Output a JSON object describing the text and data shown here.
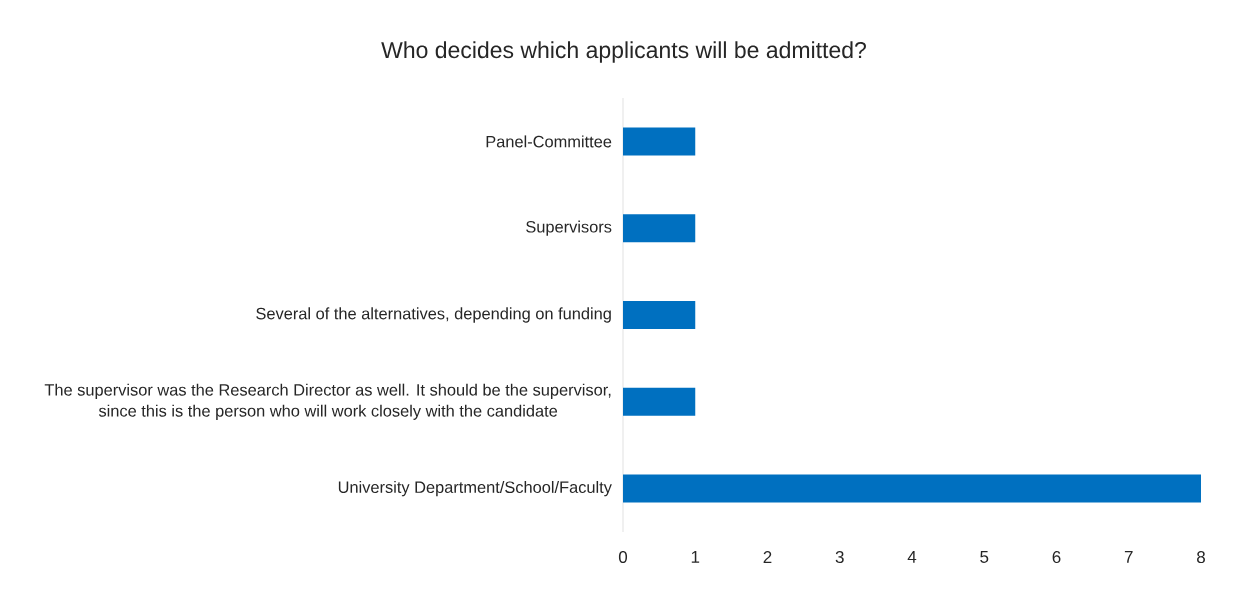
{
  "chart_data": {
    "type": "bar",
    "orientation": "horizontal",
    "title": "Who decides which applicants will be admitted?",
    "categories": [
      "Panel-Committee",
      "Supervisors",
      "Several of the alternatives, depending on funding",
      "The supervisor was the Research Director as well. It should be the supervisor, since this is the person who will work closely with the candidate",
      "University Department/School/Faculty"
    ],
    "values": [
      1,
      1,
      1,
      1,
      8
    ],
    "color": "#0070c0",
    "xlim": [
      0,
      8
    ],
    "xticks": [
      0,
      1,
      2,
      3,
      4,
      5,
      6,
      7,
      8
    ],
    "grid": false
  }
}
